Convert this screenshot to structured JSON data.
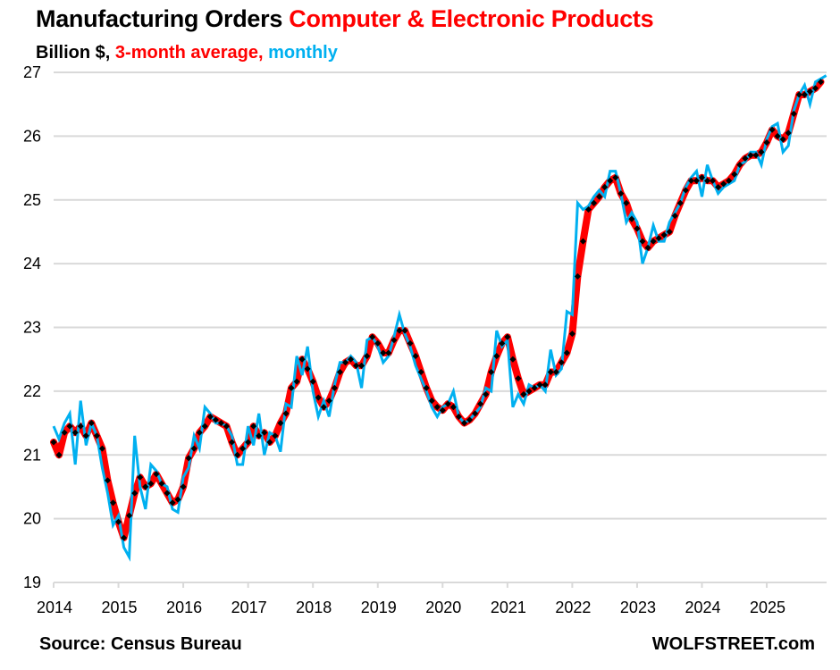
{
  "header": {
    "title_main": "Manufacturing Orders ",
    "title_accent": "Computer & Electronic Products",
    "subtitle_units": "Billion $, ",
    "subtitle_avg": "3-month average, ",
    "subtitle_monthly": "monthly"
  },
  "footer": {
    "source": "Source: Census Bureau",
    "brand": "WOLFSTREET.com"
  },
  "colors": {
    "title_accent": "#ff0000",
    "avg_line": "#ff0000",
    "avg_dots": "#000000",
    "monthly_line": "#00b0f0",
    "grid": "#d9d9d9"
  },
  "chart_data": {
    "type": "line",
    "title": "Manufacturing Orders Computer & Electronic Products",
    "subtitle": "Billion $, 3-month average, monthly",
    "xlabel": "",
    "ylabel": "Billion $",
    "ylim": [
      19,
      27
    ],
    "yticks": [
      19,
      20,
      21,
      22,
      23,
      24,
      25,
      26,
      27
    ],
    "xticks": [
      "2014",
      "2015",
      "2016",
      "2017",
      "2018",
      "2019",
      "2020",
      "2021",
      "2022",
      "2023",
      "2024",
      "2025"
    ],
    "x_start": "2014-01",
    "x_frequency": "monthly",
    "grid": true,
    "legend": "in-subtitle",
    "series": [
      {
        "name": "monthly",
        "color": "#00b0f0",
        "values": [
          21.45,
          21.25,
          21.5,
          21.65,
          20.85,
          21.85,
          21.15,
          21.5,
          21.3,
          20.8,
          20.4,
          19.9,
          20.05,
          19.55,
          19.4,
          21.3,
          20.5,
          20.15,
          20.85,
          20.75,
          20.55,
          20.5,
          20.15,
          20.1,
          20.65,
          20.8,
          21.3,
          21.1,
          21.75,
          21.65,
          21.5,
          21.5,
          21.45,
          21.3,
          20.85,
          20.85,
          21.45,
          21.15,
          21.65,
          21.0,
          21.35,
          21.3,
          21.05,
          21.8,
          21.75,
          22.55,
          22.25,
          22.7,
          22.0,
          21.6,
          21.85,
          21.6,
          22.1,
          22.45,
          22.45,
          22.55,
          22.45,
          22.05,
          22.8,
          22.85,
          22.7,
          22.45,
          22.55,
          22.85,
          23.2,
          22.9,
          22.7,
          22.4,
          22.2,
          22.0,
          21.75,
          21.6,
          21.75,
          21.8,
          22.0,
          21.6,
          21.5,
          21.55,
          21.65,
          21.75,
          22.05,
          22.0,
          22.95,
          22.7,
          22.8,
          21.75,
          21.95,
          21.8,
          22.1,
          22.05,
          22.1,
          22.0,
          22.65,
          22.25,
          22.35,
          23.25,
          23.2,
          24.95,
          24.85,
          24.9,
          25.05,
          25.15,
          25.05,
          25.45,
          25.45,
          25.1,
          24.65,
          24.8,
          24.65,
          24.0,
          24.25,
          24.6,
          24.35,
          24.35,
          24.65,
          24.8,
          24.95,
          25.2,
          25.35,
          25.45,
          25.05,
          25.55,
          25.3,
          25.1,
          25.2,
          25.25,
          25.3,
          25.55,
          25.6,
          25.75,
          25.75,
          25.55,
          25.95,
          26.15,
          26.2,
          25.75,
          25.85,
          26.4,
          26.65,
          26.8,
          26.5,
          26.85,
          26.9,
          26.95
        ]
      },
      {
        "name": "3-month average",
        "color": "#ff0000",
        "values": [
          21.2,
          21.0,
          21.35,
          21.45,
          21.35,
          21.45,
          21.3,
          21.5,
          21.3,
          21.1,
          20.6,
          20.25,
          19.95,
          19.7,
          20.05,
          20.4,
          20.65,
          20.5,
          20.55,
          20.7,
          20.55,
          20.4,
          20.25,
          20.3,
          20.5,
          20.95,
          21.1,
          21.35,
          21.45,
          21.6,
          21.55,
          21.5,
          21.45,
          21.2,
          21.0,
          21.1,
          21.2,
          21.45,
          21.3,
          21.35,
          21.2,
          21.3,
          21.5,
          21.65,
          22.05,
          22.15,
          22.5,
          22.35,
          22.15,
          21.9,
          21.75,
          21.85,
          22.05,
          22.3,
          22.45,
          22.5,
          22.4,
          22.4,
          22.55,
          22.85,
          22.75,
          22.6,
          22.6,
          22.8,
          22.95,
          22.95,
          22.75,
          22.55,
          22.3,
          22.05,
          21.85,
          21.75,
          21.7,
          21.8,
          21.75,
          21.6,
          21.5,
          21.55,
          21.65,
          21.8,
          21.95,
          22.3,
          22.55,
          22.75,
          22.85,
          22.5,
          22.2,
          21.95,
          22.0,
          22.05,
          22.1,
          22.1,
          22.3,
          22.3,
          22.45,
          22.6,
          22.9,
          23.8,
          24.35,
          24.85,
          24.95,
          25.05,
          25.2,
          25.3,
          25.35,
          25.1,
          24.95,
          24.7,
          24.55,
          24.35,
          24.25,
          24.35,
          24.4,
          24.45,
          24.5,
          24.75,
          24.95,
          25.15,
          25.3,
          25.3,
          25.35,
          25.3,
          25.3,
          25.2,
          25.25,
          25.3,
          25.4,
          25.55,
          25.65,
          25.7,
          25.7,
          25.75,
          25.9,
          26.1,
          26.0,
          25.95,
          26.05,
          26.35,
          26.65,
          26.65,
          26.7,
          26.75,
          26.85
        ]
      }
    ]
  }
}
